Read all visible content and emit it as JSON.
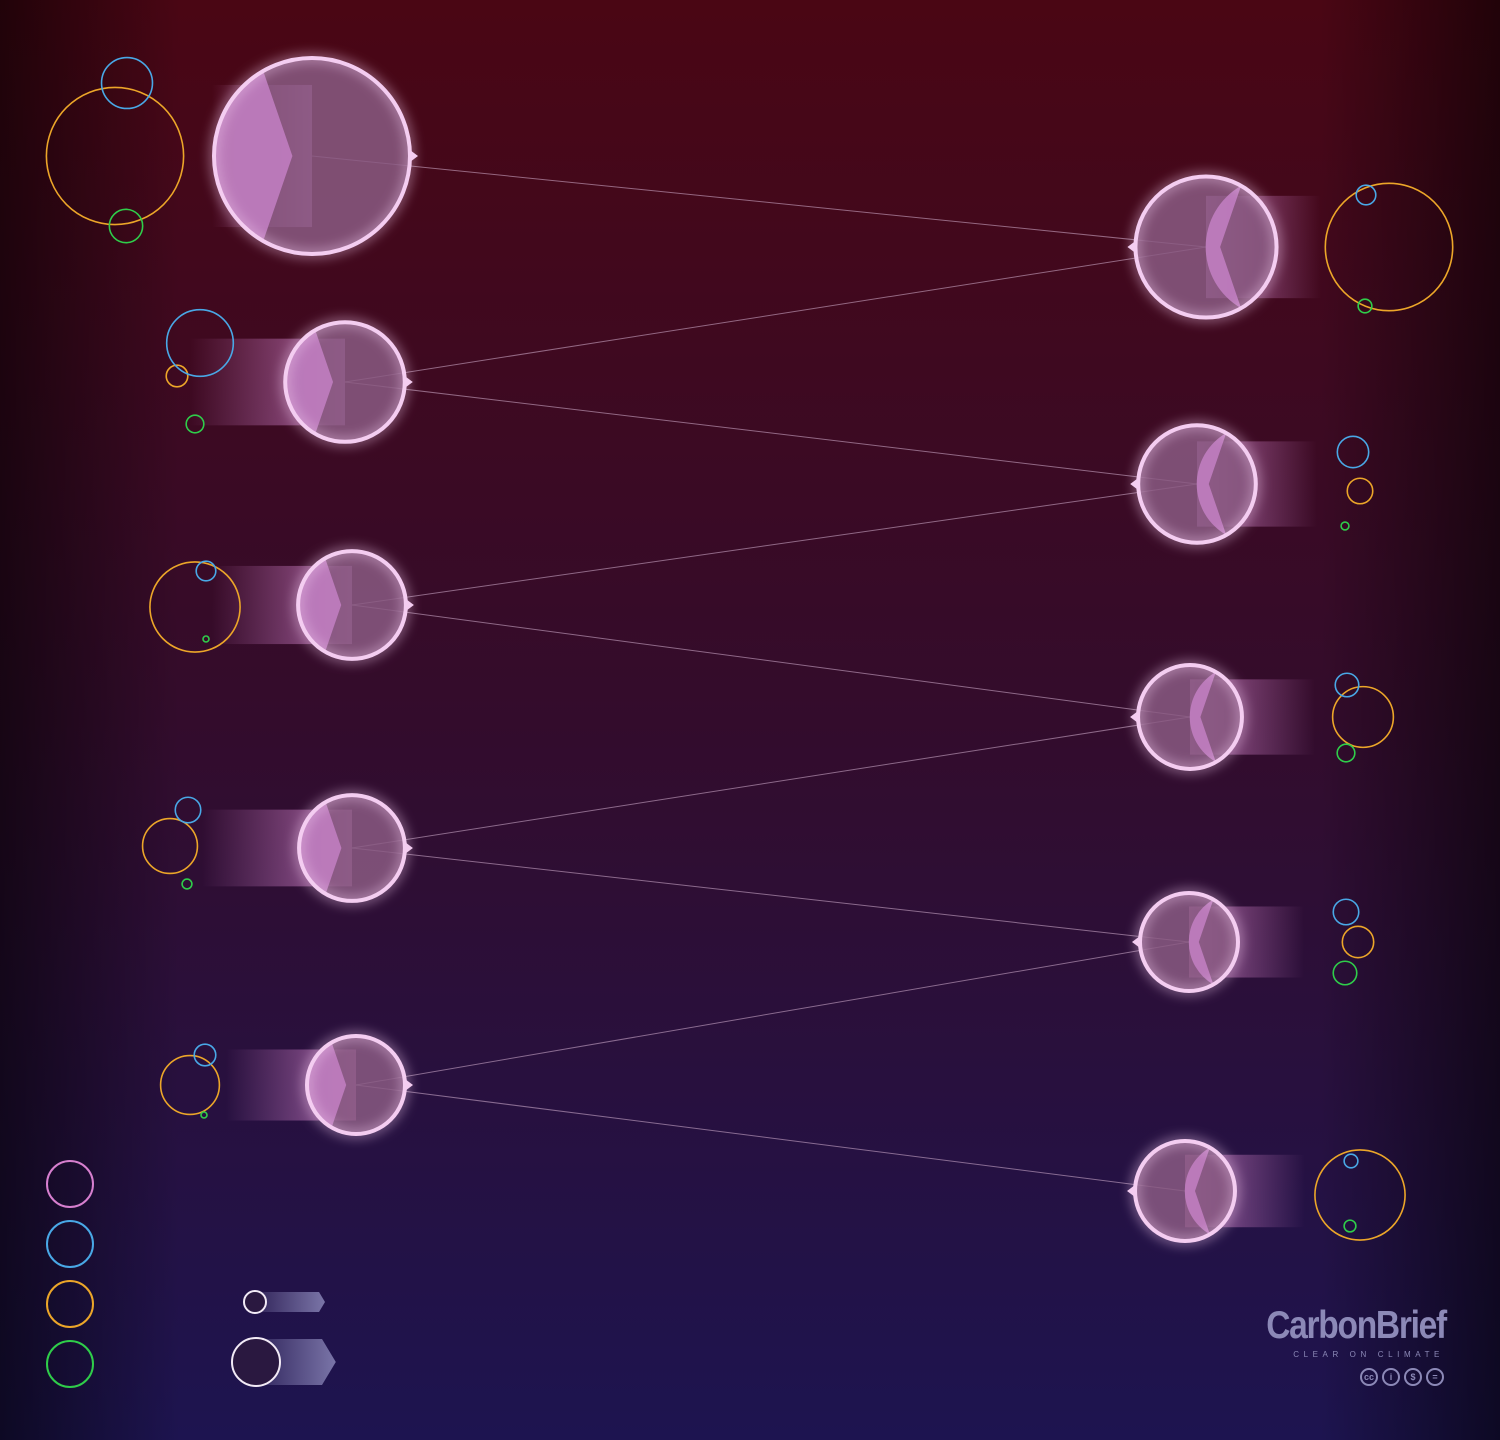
{
  "diagram": {
    "colors": {
      "background_top": "#4a0614",
      "background_bottom": "#1c1450",
      "node": "#f4cdf1",
      "node_fill": "#8a5a82",
      "wedge": "#c07dc0",
      "pink": "#d77fcf",
      "blue": "#49a8e6",
      "yellow": "#eca629",
      "green": "#2fcd4a"
    },
    "left_nodes": [
      {
        "id": "L1",
        "pink": 1.0,
        "blue": 0.26,
        "yellow": 0.7,
        "green": 0.17
      },
      {
        "id": "L2",
        "pink": 0.61,
        "blue": 0.34,
        "yellow": 0.11,
        "green": 0.09
      },
      {
        "id": "L3",
        "pink": 0.55,
        "blue": 0.1,
        "yellow": 0.46,
        "green": 0.03
      },
      {
        "id": "L4",
        "pink": 0.54,
        "blue": 0.13,
        "yellow": 0.28,
        "green": 0.05
      },
      {
        "id": "L5",
        "pink": 0.5,
        "blue": 0.11,
        "yellow": 0.3,
        "green": 0.02
      }
    ],
    "right_nodes": [
      {
        "id": "R1",
        "pink": 0.72,
        "blue": 0.1,
        "yellow": 0.65,
        "green": 0.07
      },
      {
        "id": "R2",
        "pink": 0.6,
        "blue": 0.16,
        "yellow": 0.13,
        "green": 0.04
      },
      {
        "id": "R3",
        "pink": 0.53,
        "blue": 0.12,
        "yellow": 0.31,
        "green": 0.09
      },
      {
        "id": "R4",
        "pink": 0.5,
        "blue": 0.13,
        "yellow": 0.16,
        "green": 0.12
      },
      {
        "id": "R5",
        "pink": 0.51,
        "blue": 0.07,
        "yellow": 0.46,
        "green": 0.06
      }
    ],
    "links": [
      [
        "L1",
        "R1"
      ],
      [
        "R1",
        "L2"
      ],
      [
        "L2",
        "R2"
      ],
      [
        "R2",
        "L3"
      ],
      [
        "L3",
        "R3"
      ],
      [
        "R3",
        "L4"
      ],
      [
        "L4",
        "R4"
      ],
      [
        "R4",
        "L5"
      ],
      [
        "L5",
        "R5"
      ]
    ],
    "legend": {
      "circle_colors": [
        "pink",
        "blue",
        "yellow",
        "green"
      ],
      "size_keys": [
        "small",
        "large"
      ]
    }
  },
  "brand": {
    "name": "CarbonBrief",
    "tagline": "CLEAR ON CLIMATE",
    "license": [
      "cc",
      "i",
      "$",
      "="
    ]
  }
}
